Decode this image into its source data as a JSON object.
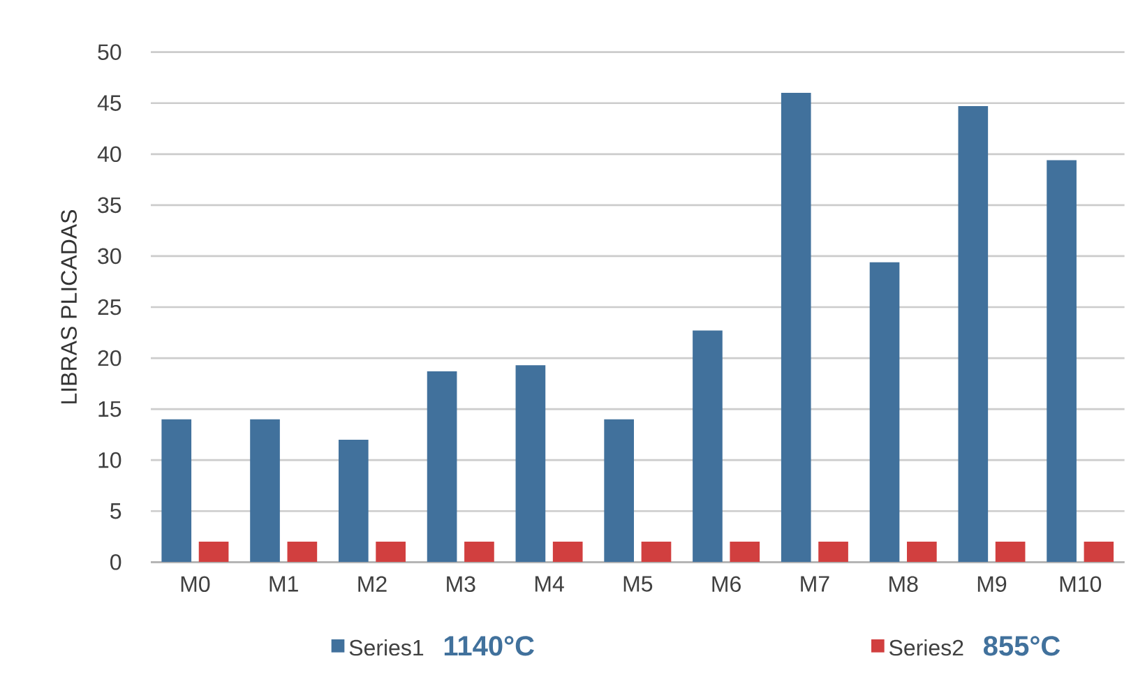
{
  "chart_data": {
    "type": "bar",
    "ylabel": "LIBRAS PLICADAS",
    "categories": [
      "M0",
      "M1",
      "M2",
      "M3",
      "M4",
      "M5",
      "M6",
      "M7",
      "M8",
      "M9",
      "M10"
    ],
    "series": [
      {
        "name": "Series1",
        "color": "#41719c",
        "values": [
          14,
          14,
          12,
          18.7,
          19.3,
          14,
          22.7,
          46,
          29.4,
          44.7,
          39.4
        ]
      },
      {
        "name": "Series2",
        "color": "#d13f3f",
        "values": [
          2,
          2,
          2,
          2,
          2,
          2,
          2,
          2,
          2,
          2,
          2
        ]
      }
    ],
    "annotations": [
      "1140°C",
      "855°C"
    ],
    "ylim": [
      0,
      50
    ],
    "yticks": [
      0,
      5,
      10,
      15,
      20,
      25,
      30,
      35,
      40,
      45,
      50
    ],
    "grid": "y",
    "legend": "bottom"
  }
}
